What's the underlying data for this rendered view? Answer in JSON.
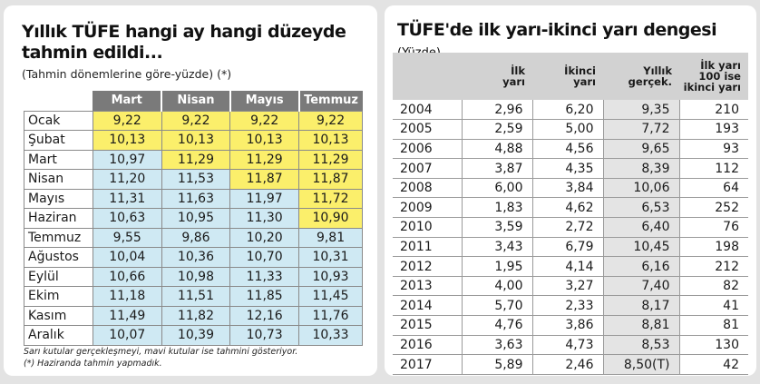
{
  "left": {
    "title": "Yıllık TÜFE hangi ay hangi düzeyde tahmin edildi...",
    "subtitle": "(Tahmin dönemlerine göre-yüzde) (*)",
    "columns": [
      "Mart",
      "Nisan",
      "Mayıs",
      "Temmuz"
    ],
    "rows": [
      {
        "month": "Ocak",
        "values": [
          "9,22",
          "9,22",
          "9,22",
          "9,22"
        ],
        "colors": [
          "y",
          "y",
          "y",
          "y"
        ]
      },
      {
        "month": "Şubat",
        "values": [
          "10,13",
          "10,13",
          "10,13",
          "10,13"
        ],
        "colors": [
          "y",
          "y",
          "y",
          "y"
        ]
      },
      {
        "month": "Mart",
        "values": [
          "10,97",
          "11,29",
          "11,29",
          "11,29"
        ],
        "colors": [
          "b",
          "y",
          "y",
          "y"
        ]
      },
      {
        "month": "Nisan",
        "values": [
          "11,20",
          "11,53",
          "11,87",
          "11,87"
        ],
        "colors": [
          "b",
          "b",
          "y",
          "y"
        ]
      },
      {
        "month": "Mayıs",
        "values": [
          "11,31",
          "11,63",
          "11,97",
          "11,72"
        ],
        "colors": [
          "b",
          "b",
          "b",
          "y"
        ]
      },
      {
        "month": "Haziran",
        "values": [
          "10,63",
          "10,95",
          "11,30",
          "10,90"
        ],
        "colors": [
          "b",
          "b",
          "b",
          "y"
        ]
      },
      {
        "month": "Temmuz",
        "values": [
          "9,55",
          "9,86",
          "10,20",
          "9,81"
        ],
        "colors": [
          "b",
          "b",
          "b",
          "b"
        ]
      },
      {
        "month": "Ağustos",
        "values": [
          "10,04",
          "10,36",
          "10,70",
          "10,31"
        ],
        "colors": [
          "b",
          "b",
          "b",
          "b"
        ]
      },
      {
        "month": "Eylül",
        "values": [
          "10,66",
          "10,98",
          "11,33",
          "10,93"
        ],
        "colors": [
          "b",
          "b",
          "b",
          "b"
        ]
      },
      {
        "month": "Ekim",
        "values": [
          "11,18",
          "11,51",
          "11,85",
          "11,45"
        ],
        "colors": [
          "b",
          "b",
          "b",
          "b"
        ]
      },
      {
        "month": "Kasım",
        "values": [
          "11,49",
          "11,82",
          "12,16",
          "11,76"
        ],
        "colors": [
          "b",
          "b",
          "b",
          "b"
        ]
      },
      {
        "month": "Aralık",
        "values": [
          "10,07",
          "10,39",
          "10,73",
          "10,33"
        ],
        "colors": [
          "b",
          "b",
          "b",
          "b"
        ]
      }
    ],
    "footnote_1": "Sarı kutular gerçekleşmeyi, mavi kutular ise tahmini gösteriyor.",
    "footnote_2": "(*) Haziranda tahmin yapmadık."
  },
  "right": {
    "title": "TÜFE'de ilk yarı-ikinci yarı dengesi",
    "unit": "(Yüzde)",
    "columns": [
      [
        "İlk",
        "yarı"
      ],
      [
        "İkinci",
        "yarı"
      ],
      [
        "Yıllık",
        "gerçek."
      ],
      [
        "İlk yarı",
        "100 ise",
        "ikinci yarı"
      ]
    ],
    "rows": [
      {
        "year": "2004",
        "values": [
          "2,96",
          "6,20",
          "9,35",
          "210"
        ]
      },
      {
        "year": "2005",
        "values": [
          "2,59",
          "5,00",
          "7,72",
          "193"
        ]
      },
      {
        "year": "2006",
        "values": [
          "4,88",
          "4,56",
          "9,65",
          "93"
        ]
      },
      {
        "year": "2007",
        "values": [
          "3,87",
          "4,35",
          "8,39",
          "112"
        ]
      },
      {
        "year": "2008",
        "values": [
          "6,00",
          "3,84",
          "10,06",
          "64"
        ]
      },
      {
        "year": "2009",
        "values": [
          "1,83",
          "4,62",
          "6,53",
          "252"
        ]
      },
      {
        "year": "2010",
        "values": [
          "3,59",
          "2,72",
          "6,40",
          "76"
        ]
      },
      {
        "year": "2011",
        "values": [
          "3,43",
          "6,79",
          "10,45",
          "198"
        ]
      },
      {
        "year": "2012",
        "values": [
          "1,95",
          "4,14",
          "6,16",
          "212"
        ]
      },
      {
        "year": "2013",
        "values": [
          "4,00",
          "3,27",
          "7,40",
          "82"
        ]
      },
      {
        "year": "2014",
        "values": [
          "5,70",
          "2,33",
          "8,17",
          "41"
        ]
      },
      {
        "year": "2015",
        "values": [
          "4,76",
          "3,86",
          "8,81",
          "81"
        ]
      },
      {
        "year": "2016",
        "values": [
          "3,63",
          "4,73",
          "8,53",
          "130"
        ]
      },
      {
        "year": "2017",
        "values": [
          "5,89",
          "2,46",
          "8,50(T)",
          "42"
        ]
      }
    ]
  }
}
